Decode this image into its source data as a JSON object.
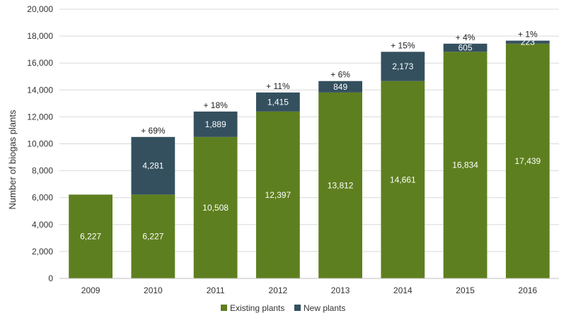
{
  "chart_data": {
    "type": "bar",
    "stacked": true,
    "title": "",
    "xlabel": "",
    "ylabel": "Number of biogas plants",
    "ylim": [
      0,
      20000
    ],
    "ytick_step": 2000,
    "grid": true,
    "legend_position": "bottom",
    "categories": [
      "2009",
      "2010",
      "2011",
      "2012",
      "2013",
      "2014",
      "2015",
      "2016"
    ],
    "series": [
      {
        "name": "Existing plants",
        "color": "#5e7f1f",
        "values": [
          6227,
          6227,
          10508,
          12397,
          13812,
          14661,
          16834,
          17439
        ],
        "labels": [
          "6,227",
          "6,227",
          "10,508",
          "12,397",
          "13,812",
          "14,661",
          "16,834",
          "17,439"
        ]
      },
      {
        "name": "New plants",
        "color": "#34505f",
        "values": [
          0,
          4281,
          1889,
          1415,
          849,
          2173,
          605,
          223
        ],
        "labels": [
          "",
          "4,281",
          "1,889",
          "1,415",
          "849",
          "2,173",
          "605",
          "223"
        ]
      }
    ],
    "growth_labels": [
      "",
      "+ 69%",
      "+ 18%",
      "+ 11%",
      "+ 6%",
      "+ 15%",
      "+ 4%",
      "+ 1%"
    ],
    "ytick_labels": [
      "0",
      "2,000",
      "4,000",
      "6,000",
      "8,000",
      "10,000",
      "12,000",
      "14,000",
      "16,000",
      "18,000",
      "20,000"
    ]
  }
}
